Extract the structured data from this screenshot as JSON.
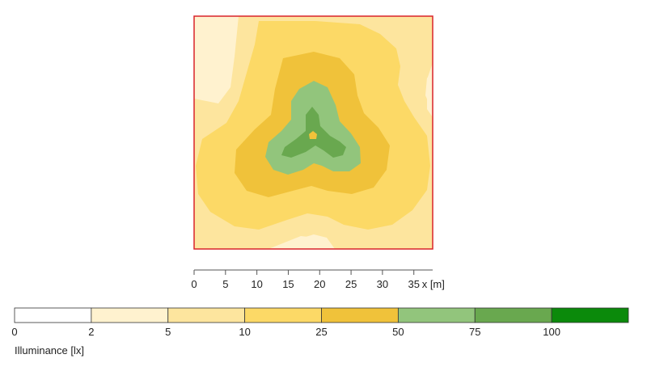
{
  "chart_data": {
    "type": "heatmap",
    "title": "",
    "x_axis": {
      "label": "x [m]",
      "range": [
        0,
        38
      ],
      "ticks": [
        0,
        5,
        10,
        15,
        20,
        25,
        30,
        35
      ]
    },
    "legend": {
      "title": "Illuminance [lx]",
      "placement": "bottom",
      "bins": [
        {
          "from": 0,
          "to": 2,
          "color": "#ffffff"
        },
        {
          "from": 2,
          "to": 5,
          "color": "#fff2cf"
        },
        {
          "from": 5,
          "to": 10,
          "color": "#fde59e"
        },
        {
          "from": 10,
          "to": 25,
          "color": "#fcd966"
        },
        {
          "from": 25,
          "to": 50,
          "color": "#f0c23a"
        },
        {
          "from": 50,
          "to": 75,
          "color": "#92c57c"
        },
        {
          "from": 75,
          "to": 100,
          "color": "#69a84f"
        },
        {
          "from": 100,
          "to": null,
          "color": "#0b8a0b"
        }
      ],
      "tick_labels": [
        "0",
        "2",
        "5",
        "10",
        "25",
        "50",
        "75",
        "100"
      ]
    },
    "colors": {
      "frame": "#d9232a",
      "axis": "#555555"
    }
  }
}
